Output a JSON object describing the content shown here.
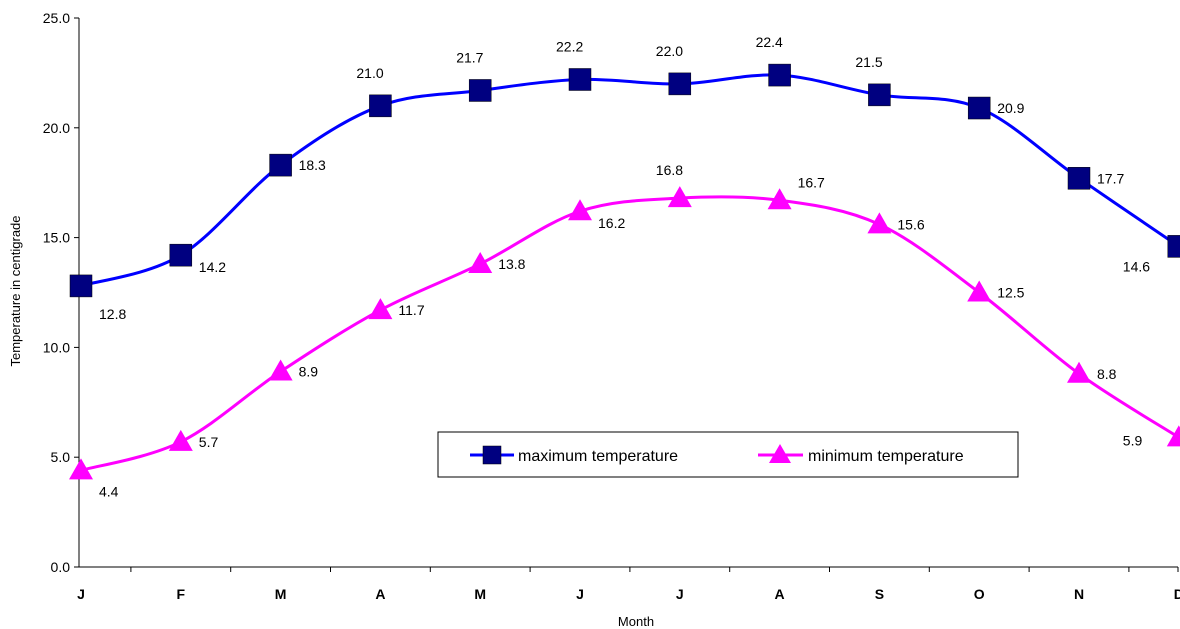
{
  "chart_data": {
    "type": "line",
    "categories": [
      "J",
      "F",
      "M",
      "A",
      "M",
      "J",
      "J",
      "A",
      "S",
      "O",
      "N",
      "D"
    ],
    "series": [
      {
        "name": "maximum temperature",
        "values": [
          12.8,
          14.2,
          18.3,
          21.0,
          21.7,
          22.2,
          22.0,
          22.4,
          21.5,
          20.9,
          17.7,
          14.6
        ],
        "labels": [
          "12.8",
          "14.2",
          "18.3",
          "21.0",
          "21.7",
          "22.2",
          "22.0",
          "22.4",
          "21.5",
          "20.9",
          "17.7",
          "14.6"
        ],
        "color": "#0000FF",
        "marker": "square",
        "marker_color": "#000080"
      },
      {
        "name": "minimum temperature",
        "values": [
          4.4,
          5.7,
          8.9,
          11.7,
          13.8,
          16.2,
          16.8,
          16.7,
          15.6,
          12.5,
          8.8,
          5.9
        ],
        "labels": [
          "4.4",
          "5.7",
          "8.9",
          "11.7",
          "13.8",
          "16.2",
          "16.8",
          "16.7",
          "15.6",
          "12.5",
          "8.8",
          "5.9"
        ],
        "color": "#FF00FF",
        "marker": "triangle",
        "marker_color": "#FF00FF"
      }
    ],
    "xlabel": "Month",
    "ylabel": "Temperature in centigrade",
    "ylim": [
      0,
      25
    ],
    "yticks": [
      "0.0",
      "5.0",
      "10.0",
      "15.0",
      "20.0",
      "25.0"
    ],
    "grid": false,
    "smoothed": true,
    "legend": "inside-bottom-right"
  }
}
